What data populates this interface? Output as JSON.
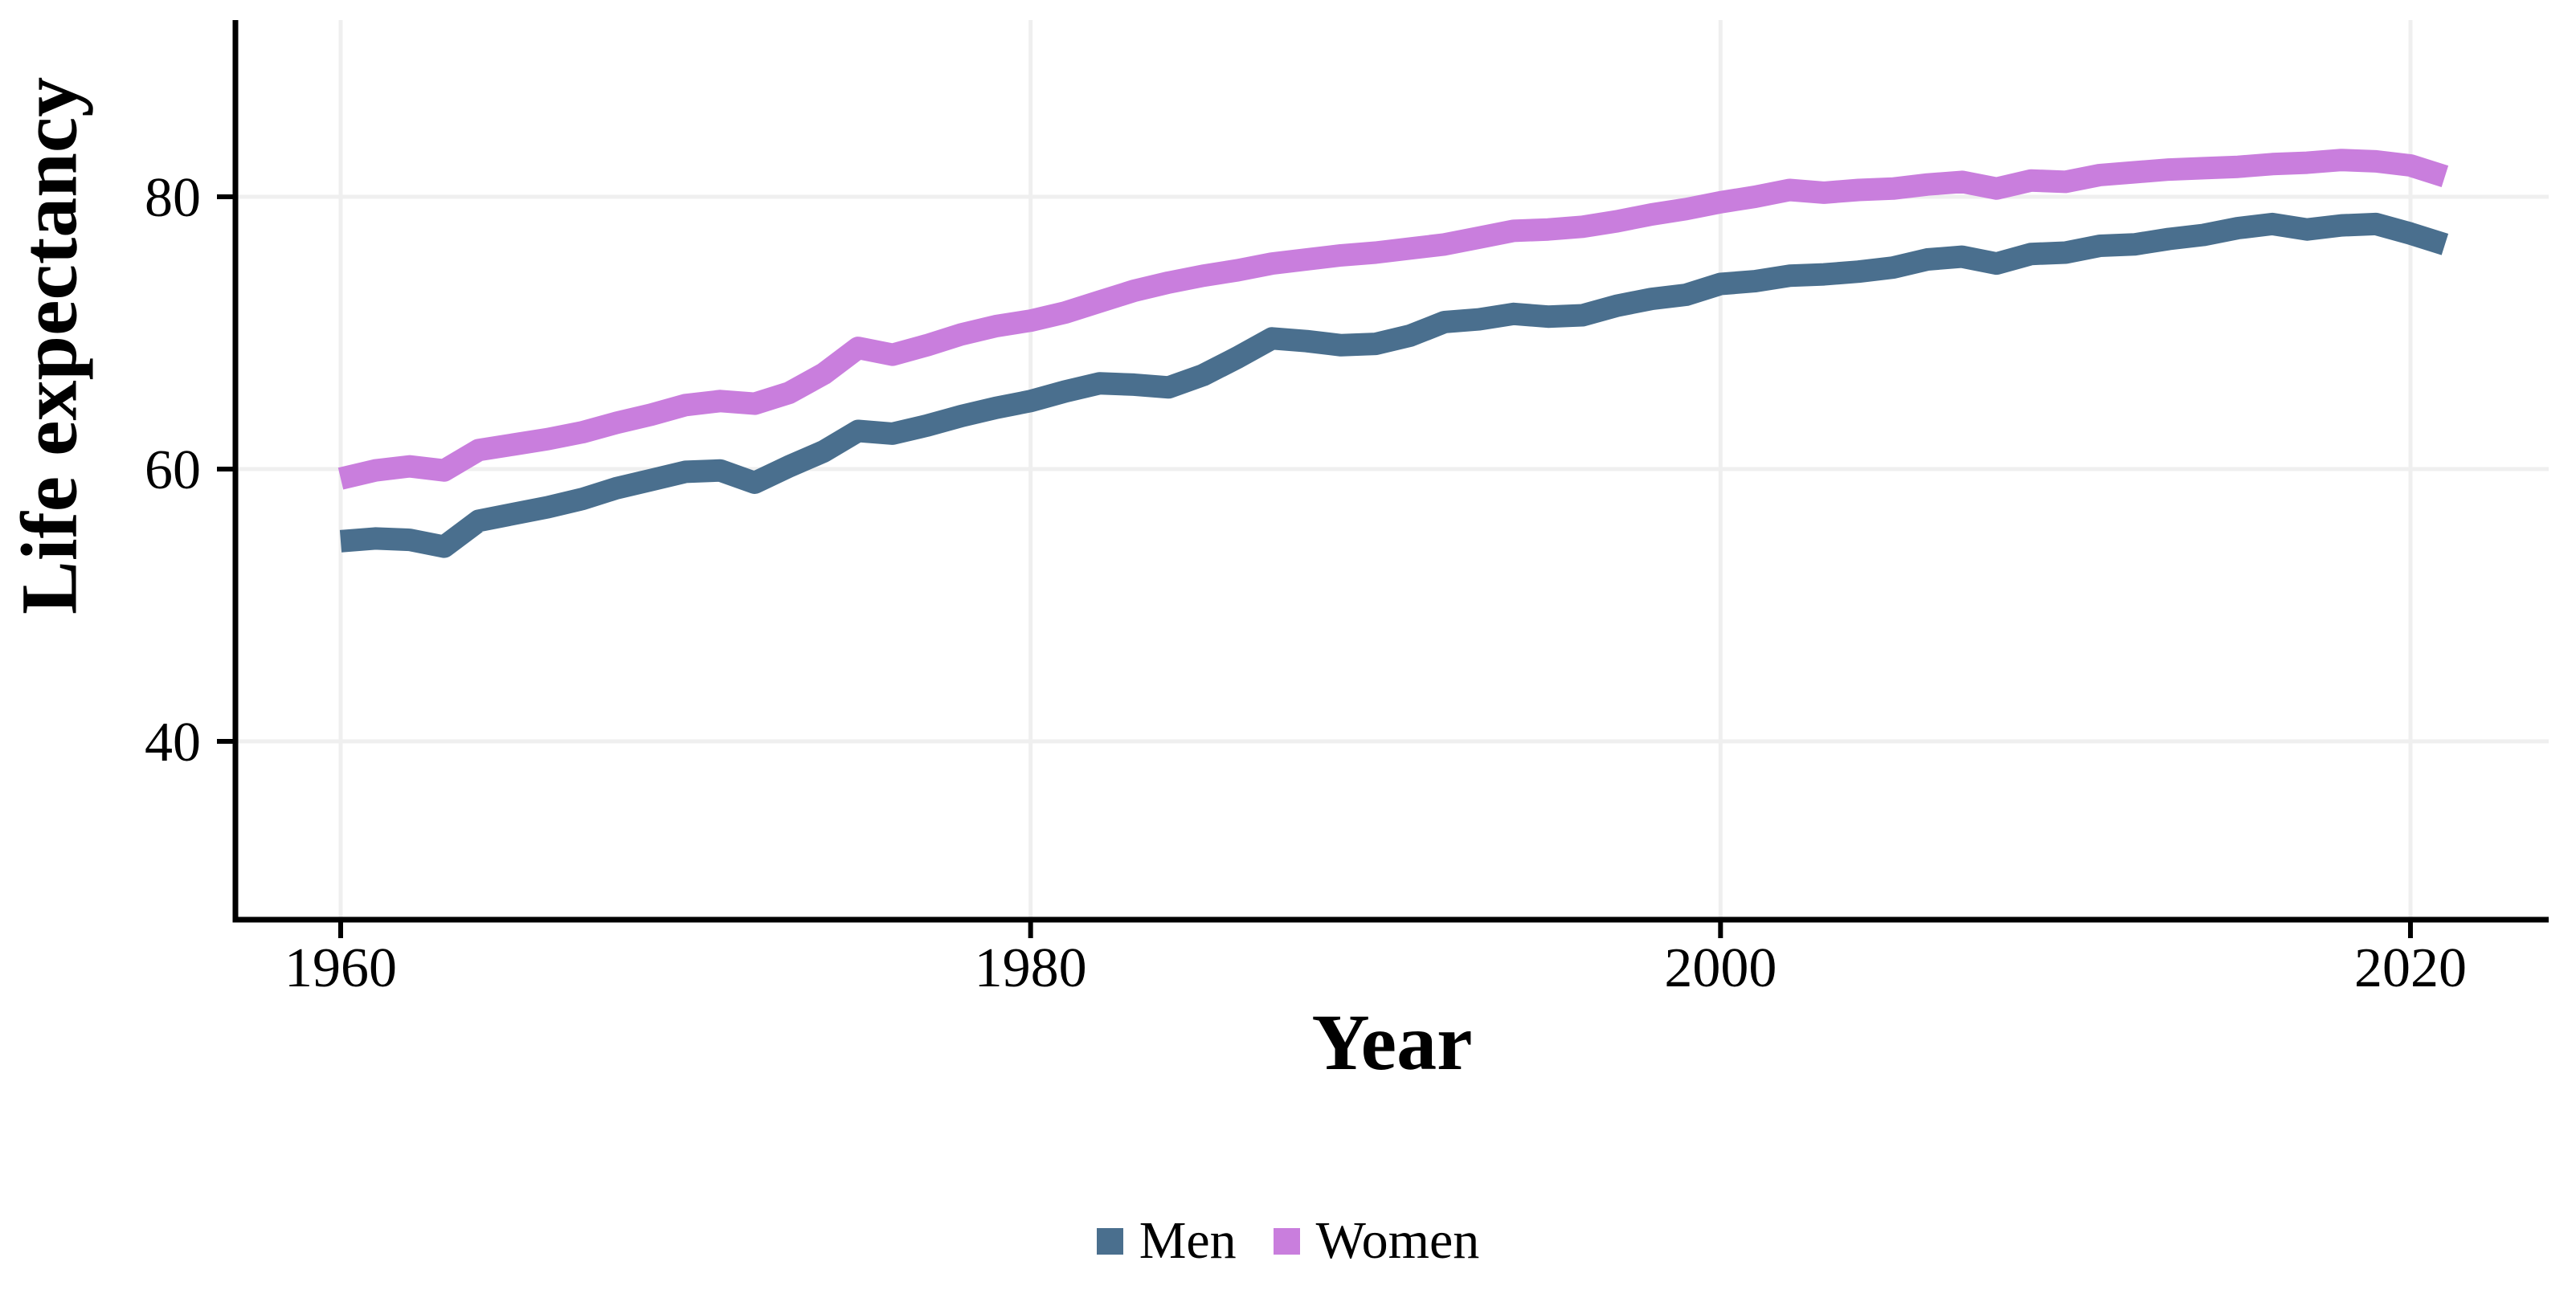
{
  "chart_data": {
    "type": "line",
    "title": "",
    "xlabel": "Year",
    "ylabel": "Life expectancy",
    "legend_position": "bottom",
    "grid": true,
    "xticks": [
      "1960",
      "1980",
      "2000",
      "2020"
    ],
    "xtick_values": [
      1960,
      1980,
      2000,
      2020
    ],
    "yticks": [
      "40",
      "60",
      "80"
    ],
    "ytick_values": [
      40,
      60,
      80
    ],
    "x_axis_range_shown": [
      1957,
      2024
    ],
    "y_axis_range_shown": [
      27,
      93
    ],
    "years": [
      1960,
      1961,
      1962,
      1963,
      1964,
      1965,
      1966,
      1967,
      1968,
      1969,
      1970,
      1971,
      1972,
      1973,
      1974,
      1975,
      1976,
      1977,
      1978,
      1979,
      1980,
      1981,
      1982,
      1983,
      1984,
      1985,
      1986,
      1987,
      1988,
      1989,
      1990,
      1991,
      1992,
      1993,
      1994,
      1995,
      1996,
      1997,
      1998,
      1999,
      2000,
      2001,
      2002,
      2003,
      2004,
      2005,
      2006,
      2007,
      2008,
      2009,
      2010,
      2011,
      2012,
      2013,
      2014,
      2015,
      2016,
      2017,
      2018,
      2019,
      2020,
      2021
    ],
    "series": [
      {
        "name": "Men",
        "color": "#4A6F8E",
        "values": [
          54.7,
          54.9,
          54.8,
          54.3,
          56.2,
          56.7,
          57.2,
          57.8,
          58.6,
          59.2,
          59.8,
          59.9,
          59.0,
          60.2,
          61.3,
          62.8,
          62.6,
          63.2,
          63.9,
          64.5,
          65.0,
          65.7,
          66.3,
          66.2,
          66.0,
          66.9,
          68.2,
          69.6,
          69.4,
          69.1,
          69.2,
          69.8,
          70.8,
          71.0,
          71.4,
          71.2,
          71.3,
          72.0,
          72.5,
          72.8,
          73.6,
          73.8,
          74.2,
          74.3,
          74.5,
          74.8,
          75.4,
          75.6,
          75.1,
          75.8,
          75.9,
          76.4,
          76.5,
          76.9,
          77.2,
          77.7,
          78.0,
          77.6,
          77.9,
          78.0,
          77.3,
          76.5
        ]
      },
      {
        "name": "Women",
        "color": "#C97EDD",
        "values": [
          59.3,
          59.9,
          60.2,
          59.9,
          61.4,
          61.8,
          62.2,
          62.7,
          63.4,
          64.0,
          64.7,
          65.0,
          64.8,
          65.6,
          67.0,
          68.9,
          68.4,
          69.1,
          69.9,
          70.5,
          70.9,
          71.5,
          72.3,
          73.1,
          73.7,
          74.2,
          74.6,
          75.1,
          75.4,
          75.7,
          75.9,
          76.2,
          76.5,
          77.0,
          77.5,
          77.6,
          77.8,
          78.2,
          78.7,
          79.1,
          79.6,
          80.0,
          80.5,
          80.3,
          80.5,
          80.6,
          80.9,
          81.1,
          80.6,
          81.2,
          81.1,
          81.6,
          81.8,
          82.0,
          82.1,
          82.2,
          82.4,
          82.5,
          82.7,
          82.6,
          82.3,
          81.5
        ]
      }
    ]
  },
  "colors": {
    "grid": "#EFEFEF",
    "axis": "#000000",
    "text": "#000000",
    "background": "#FFFFFF"
  }
}
